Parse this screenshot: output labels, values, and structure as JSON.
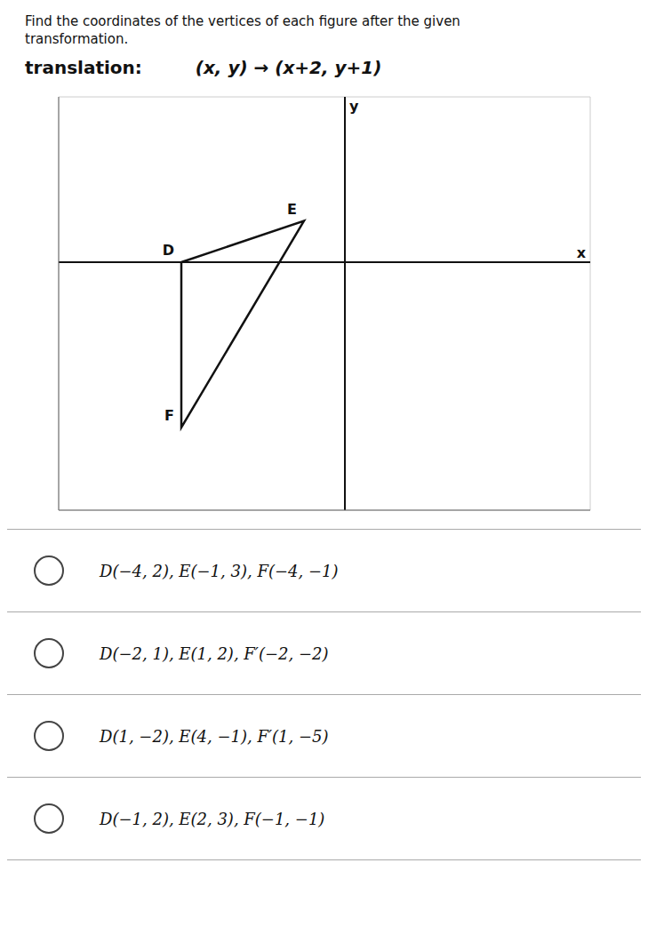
{
  "chart_data": {
    "type": "polygon",
    "title": "Find the coordinates of the vertices of each figure after the given transformation.",
    "subtitle": [
      "translation:",
      "(x, y) → (x+2, y+1)"
    ],
    "x_label": "x",
    "y_label": "y",
    "x": [
      -4,
      -1,
      -4
    ],
    "values": [
      0,
      1,
      -4
    ],
    "labels": [
      "D",
      "E",
      "F"
    ],
    "color": "#111111",
    "xlim": [
      -7,
      6
    ],
    "ylim": [
      -6,
      4
    ],
    "xticks": [
      -7,
      -6,
      -5,
      -4,
      -3,
      -2,
      -1,
      0,
      1,
      2,
      3,
      4,
      5,
      6
    ],
    "yticks": [
      -6,
      -5,
      -4,
      -3,
      -2,
      -1,
      0,
      1,
      2,
      3,
      4
    ],
    "grid": true,
    "tick_labels": false,
    "annotations": [
      "D(−4, 2), E(−1, 3), F(−4, −1)",
      "D(−2, 1), E(1, 2), F′(−2, −2)",
      "D(1, −2), E(4, −1), F′(1, −5)",
      "D(−1, 2), E(2, 3), F(−1, −1)"
    ]
  }
}
